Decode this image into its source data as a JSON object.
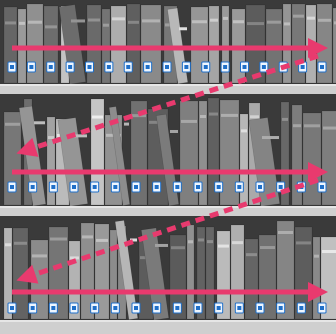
{
  "colors": {
    "arrow": "#e83a6e",
    "tag": "#1f6fc8",
    "shelf": "#cfcfcf",
    "background": "#3a3a3a"
  },
  "icons": {
    "tag": "rfid-tag-icon",
    "arrow": "arrow-right-icon"
  },
  "shelves": [
    {
      "name": "top",
      "tag_count": 17,
      "scan_direction": "right"
    },
    {
      "name": "middle",
      "tag_count": 16,
      "scan_direction": "right"
    },
    {
      "name": "bottom",
      "tag_count": 16,
      "scan_direction": "right"
    }
  ],
  "transitions": [
    {
      "from": "top",
      "to": "middle",
      "style": "dashed",
      "direction": "down-left"
    },
    {
      "from": "middle",
      "to": "bottom",
      "style": "dashed",
      "direction": "down-left"
    }
  ]
}
